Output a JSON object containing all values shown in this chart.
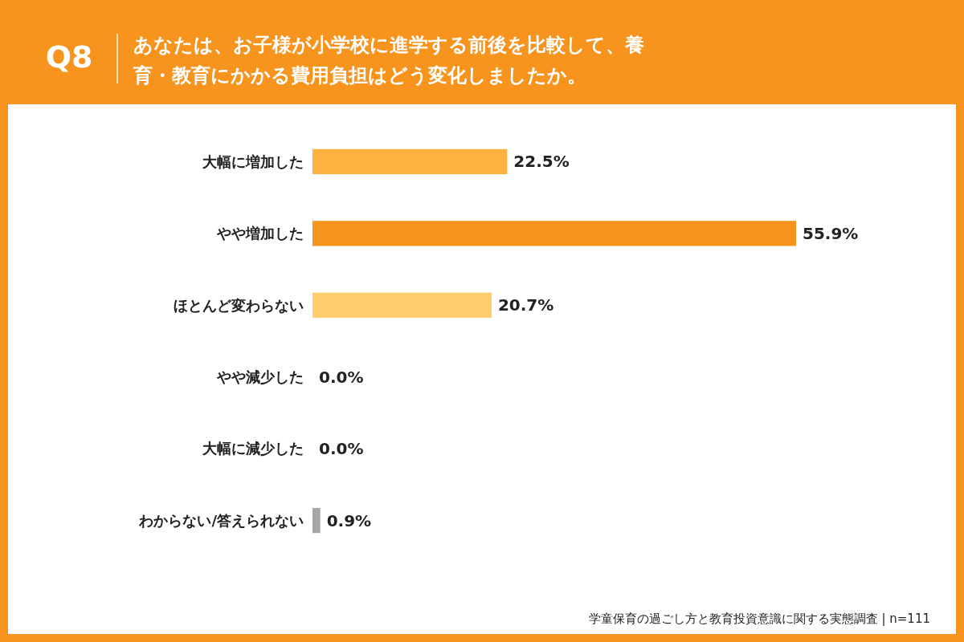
{
  "chart_data": {
    "type": "bar",
    "orientation": "horizontal",
    "title": "あなたは、お子様が小学校に進学する前後を比較して、養育・教育にかかる費用負担はどう変化しましたか。",
    "categories": [
      "大幅に増加した",
      "やや増加した",
      "ほとんど変わらない",
      "やや減少した",
      "大幅に減少した",
      "わからない/答えられない"
    ],
    "values": [
      22.5,
      55.9,
      20.7,
      0.0,
      0.0,
      0.9
    ],
    "colors": [
      "#ffb23f",
      "#f7941d",
      "#ffcc6e",
      "#ffcc6e",
      "#ffcc6e",
      "#a6a6a6"
    ],
    "value_labels": [
      "22.5%",
      "55.9%",
      "20.7%",
      "0.0%",
      "0.0%",
      "0.9%"
    ],
    "annotations": [
      "Q8",
      "学童保育の過ごし方と教育投資意識に関する実態調査 | n=111"
    ]
  }
}
